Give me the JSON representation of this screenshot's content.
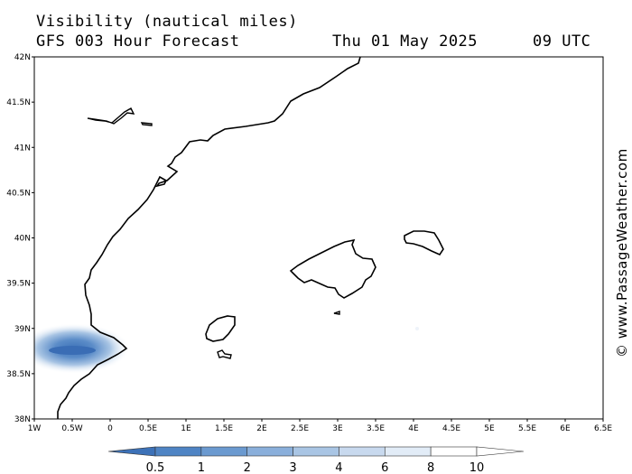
{
  "header": {
    "title": "Visibility (nautical miles)",
    "subtitle": "GFS 003 Hour Forecast",
    "date": "Thu 01 May 2025",
    "time": "09 UTC"
  },
  "map": {
    "lat_ticks": [
      "42N",
      "41.5N",
      "41N",
      "40.5N",
      "40N",
      "39.5N",
      "39N",
      "38.5N",
      "38N"
    ],
    "lon_ticks": [
      "1W",
      "0.5W",
      "0",
      "0.5E",
      "1E",
      "1.5E",
      "2E",
      "2.5E",
      "3E",
      "3.5E",
      "4E",
      "4.5E",
      "5E",
      "5.5E",
      "6E",
      "6.5E"
    ],
    "lat_range": [
      38,
      42
    ],
    "lon_range": [
      -1,
      6.5
    ]
  },
  "colorbar": {
    "labels": [
      "0.5",
      "1",
      "2",
      "3",
      "4",
      "6",
      "8",
      "10"
    ],
    "colors": [
      "#3d72b8",
      "#4f84c4",
      "#6b9ad0",
      "#8aafdb",
      "#a9c5e4",
      "#c8d9ee",
      "#e2ecf7",
      "#ffffff"
    ]
  },
  "credit": "© www.PassageWeather.com"
}
